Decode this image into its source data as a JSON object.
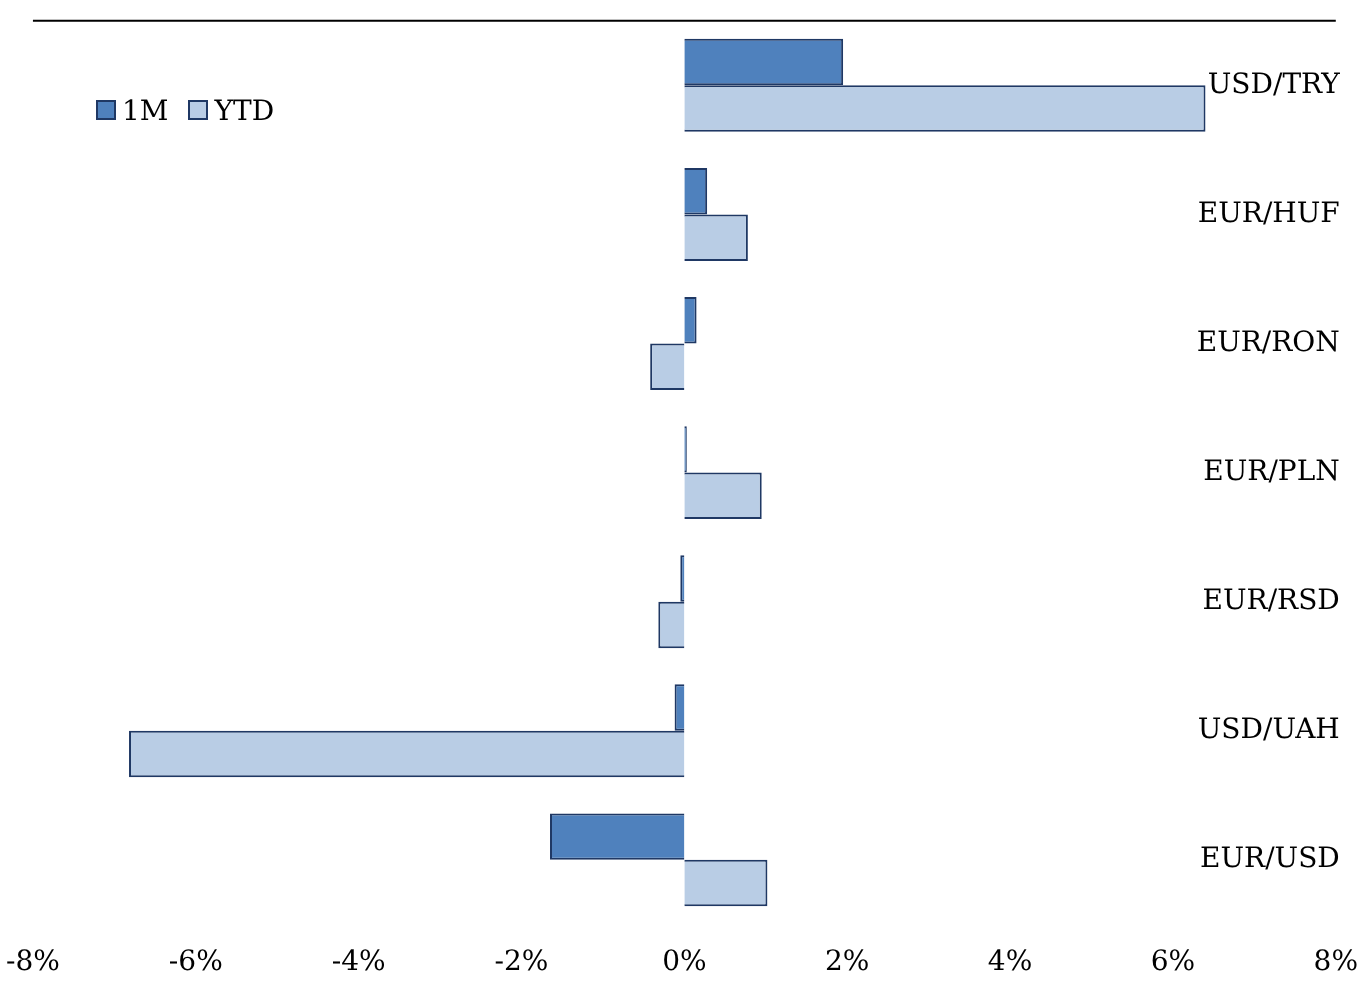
{
  "chart_data": {
    "type": "bar",
    "orientation": "horizontal",
    "categories": [
      "USD/TRY",
      "EUR/HUF",
      "EUR/RON",
      "EUR/PLN",
      "EUR/RSD",
      "USD/UAH",
      "EUR/USD"
    ],
    "series": [
      {
        "name": "1M",
        "color": "#4f81bd",
        "values": [
          1.95,
          0.28,
          0.15,
          0.03,
          -0.05,
          -0.12,
          -1.65
        ]
      },
      {
        "name": "YTD",
        "color": "#b9cde5",
        "values": [
          6.4,
          0.78,
          -0.42,
          0.95,
          -0.32,
          -6.82,
          1.02
        ]
      }
    ],
    "xlim": [
      -8,
      8
    ],
    "xticks": [
      {
        "value": -8,
        "label": "-8%"
      },
      {
        "value": -6,
        "label": "-6%"
      },
      {
        "value": -4,
        "label": "-4%"
      },
      {
        "value": -2,
        "label": "-2%"
      },
      {
        "value": 0,
        "label": "0%"
      },
      {
        "value": 2,
        "label": "2%"
      },
      {
        "value": 4,
        "label": "4%"
      },
      {
        "value": 6,
        "label": "6%"
      },
      {
        "value": 8,
        "label": "8%"
      }
    ],
    "grid": false,
    "legend": "top left"
  }
}
